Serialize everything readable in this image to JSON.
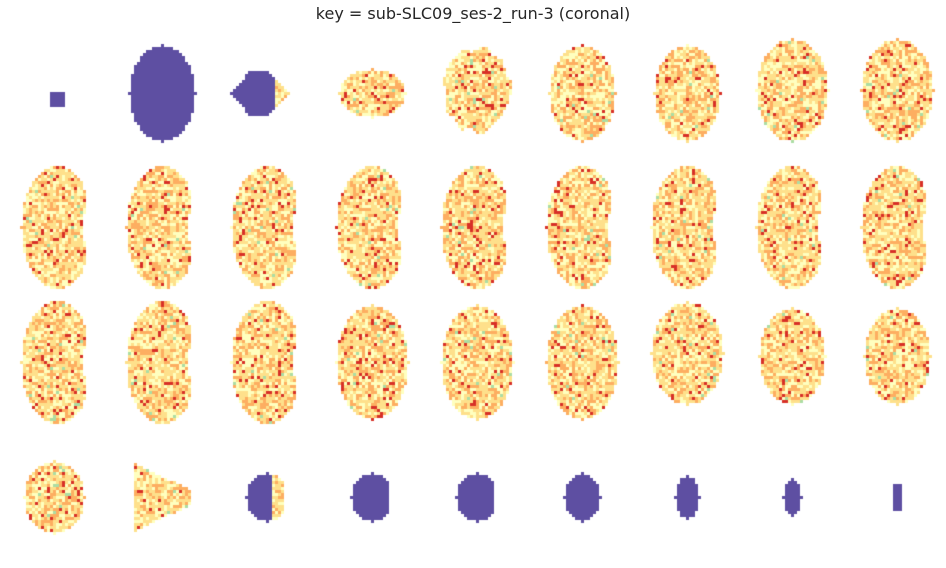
{
  "title": "key = sub-SLC09_ses-2_run-3 (coronal)",
  "colormap": "Spectral",
  "colors": {
    "background": "#ffffff",
    "mask": "#5e4fa2",
    "tissue_dark": "#d73027",
    "tissue_mid": "#fdae61",
    "tissue_light": "#fee08b",
    "tissue_pale": "#ffffbf",
    "tissue_green": "#abdda4"
  },
  "grid": {
    "rows": 4,
    "cols": 9
  },
  "slices": [
    {
      "shape": "square",
      "mode": "mask"
    },
    {
      "shape": "round",
      "mode": "mask"
    },
    {
      "shape": "triangle",
      "mode": "mask-partial"
    },
    {
      "shape": "flat-oval",
      "mode": "tissue"
    },
    {
      "shape": "blob",
      "mode": "tissue"
    },
    {
      "shape": "round",
      "mode": "tissue"
    },
    {
      "shape": "round",
      "mode": "tissue"
    },
    {
      "shape": "oval",
      "mode": "tissue"
    },
    {
      "shape": "oval",
      "mode": "tissue"
    },
    {
      "shape": "bean",
      "mode": "tissue"
    },
    {
      "shape": "bean",
      "mode": "tissue"
    },
    {
      "shape": "bean",
      "mode": "tissue"
    },
    {
      "shape": "bean",
      "mode": "tissue"
    },
    {
      "shape": "bean",
      "mode": "tissue"
    },
    {
      "shape": "bean",
      "mode": "tissue"
    },
    {
      "shape": "bean",
      "mode": "tissue"
    },
    {
      "shape": "bean",
      "mode": "tissue"
    },
    {
      "shape": "bean",
      "mode": "tissue"
    },
    {
      "shape": "bean",
      "mode": "tissue"
    },
    {
      "shape": "bean",
      "mode": "tissue"
    },
    {
      "shape": "bean",
      "mode": "tissue"
    },
    {
      "shape": "tall-oval",
      "mode": "tissue"
    },
    {
      "shape": "tall-oval",
      "mode": "tissue"
    },
    {
      "shape": "tall-oval",
      "mode": "tissue"
    },
    {
      "shape": "oval",
      "mode": "tissue"
    },
    {
      "shape": "round",
      "mode": "tissue"
    },
    {
      "shape": "round",
      "mode": "tissue"
    },
    {
      "shape": "half-oval",
      "mode": "tissue"
    },
    {
      "shape": "triangle-right",
      "mode": "tissue"
    },
    {
      "shape": "half-round",
      "mode": "mask-partial"
    },
    {
      "shape": "half-round",
      "mode": "mask"
    },
    {
      "shape": "half-round",
      "mode": "mask"
    },
    {
      "shape": "blob-small",
      "mode": "mask"
    },
    {
      "shape": "tall-small",
      "mode": "mask"
    },
    {
      "shape": "tall-tiny",
      "mode": "mask"
    },
    {
      "shape": "bar-tiny",
      "mode": "mask"
    }
  ]
}
